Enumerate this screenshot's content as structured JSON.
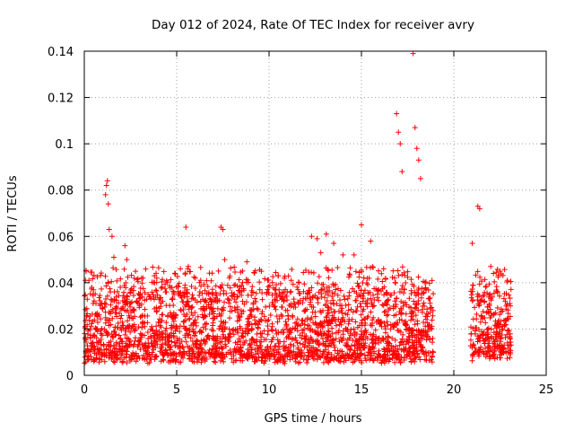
{
  "chart_data": {
    "type": "scatter",
    "title": "Day 012 of 2024, Rate Of TEC Index for receiver avry",
    "xlabel": "GPS time / hours",
    "ylabel": "ROTI / TECUs",
    "xlim": [
      0,
      25
    ],
    "ylim": [
      0,
      0.14
    ],
    "x_ticks": [
      0,
      5,
      10,
      15,
      20,
      25
    ],
    "x_tick_labels": [
      "0",
      "5",
      "10",
      "15",
      "20",
      "25"
    ],
    "y_ticks": [
      0,
      0.02,
      0.04,
      0.06,
      0.08,
      0.1,
      0.12,
      0.14
    ],
    "y_tick_labels": [
      "0",
      "0.02",
      "0.04",
      "0.06",
      "0.08",
      "0.1",
      "0.12",
      "0.14"
    ],
    "grid": true,
    "marker": "+",
    "marker_color": "#ff0000",
    "series": [
      {
        "name": "ROTI",
        "color": "#ff0000",
        "x": [
          0.1,
          0.25,
          0.4,
          1.15,
          1.2,
          1.25,
          1.3,
          1.35,
          1.5,
          1.6,
          2.2,
          2.3,
          3.1,
          3.8,
          4.4,
          5.2,
          5.5,
          5.6,
          6.3,
          7.4,
          7.5,
          7.6,
          8.8,
          9.5,
          10.5,
          11.2,
          12.3,
          12.6,
          12.8,
          13.1,
          13.5,
          14.0,
          14.6,
          15.0,
          15.5,
          16.2,
          16.9,
          17.0,
          17.1,
          17.2,
          17.8,
          17.9,
          18.0,
          18.1,
          18.2,
          18.5,
          21.0,
          21.3,
          21.4,
          22.0,
          22.5,
          22.9
        ],
        "y": [
          0.045,
          0.041,
          0.038,
          0.078,
          0.082,
          0.084,
          0.074,
          0.063,
          0.06,
          0.051,
          0.056,
          0.05,
          0.042,
          0.04,
          0.036,
          0.046,
          0.064,
          0.046,
          0.041,
          0.064,
          0.063,
          0.05,
          0.049,
          0.037,
          0.043,
          0.041,
          0.06,
          0.059,
          0.053,
          0.061,
          0.057,
          0.052,
          0.052,
          0.065,
          0.058,
          0.046,
          0.113,
          0.105,
          0.1,
          0.088,
          0.139,
          0.107,
          0.098,
          0.093,
          0.085,
          0.037,
          0.057,
          0.073,
          0.072,
          0.047,
          0.045,
          0.041
        ]
      }
    ],
    "dense_band": {
      "description_segments": [
        {
          "x_start": 0.0,
          "x_end": 18.9,
          "y_low": 0.005,
          "y_high": 0.035
        },
        {
          "x_start": 20.9,
          "x_end": 23.1,
          "y_low": 0.006,
          "y_high": 0.034
        }
      ]
    }
  }
}
